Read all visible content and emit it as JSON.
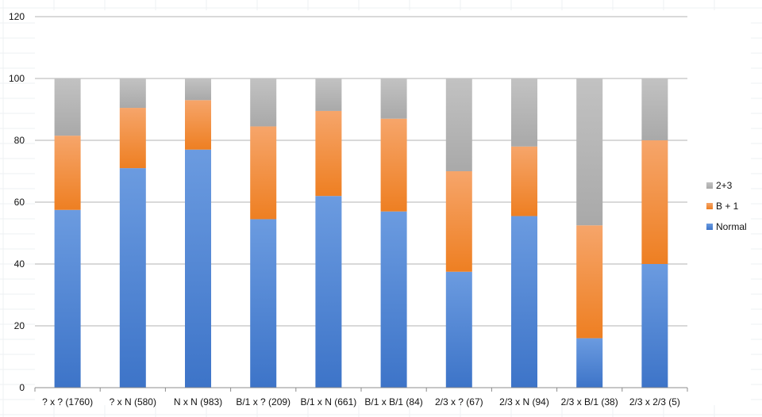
{
  "chart_data": {
    "type": "bar",
    "stacked": true,
    "categories": [
      "? x ? (1760)",
      "? x N (580)",
      "N x N (983)",
      "B/1 x ? (209)",
      "B/1 x N (661)",
      "B/1 x B/1 (84)",
      "2/3 x ? (67)",
      "2/3 x N (94)",
      "2/3 x B/1 (38)",
      "2/3 x 2/3 (5)"
    ],
    "series": [
      {
        "name": "Normal",
        "color": "#4a7fcf",
        "values": [
          57.5,
          71,
          77,
          54.5,
          62,
          57,
          37.5,
          55.5,
          16,
          40
        ]
      },
      {
        "name": "B + 1",
        "color": "#f08a34",
        "values": [
          24,
          19.5,
          16,
          30,
          27.5,
          30,
          32.5,
          22.5,
          36.5,
          40
        ]
      },
      {
        "name": "2+3",
        "color": "#b5b5b5",
        "values": [
          18.5,
          9.5,
          7,
          15.5,
          10.5,
          13,
          30,
          22,
          47.5,
          20
        ]
      }
    ],
    "ylim": [
      0,
      120
    ],
    "yticks": [
      "0",
      "20",
      "40",
      "60",
      "80",
      "100",
      "120"
    ],
    "grid": true,
    "legend": "right",
    "title": "",
    "xlabel": "",
    "ylabel": ""
  }
}
